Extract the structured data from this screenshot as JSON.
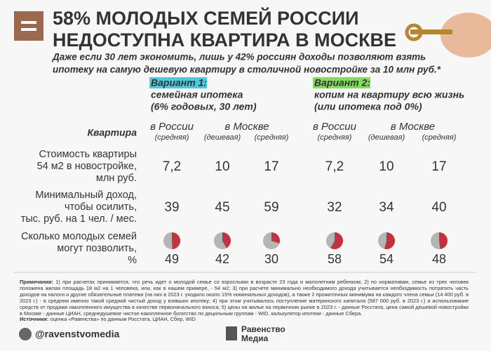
{
  "header": {
    "title_lines": [
      "58% МОЛОДЫХ СЕМЕЙ РОССИИ",
      "НЕДОСТУПНА КВАРТИРА В МОСКВЕ"
    ],
    "subtitle_lines": [
      "Даже если 30 лет экономить, лишь у 42% россиян доходы позволяют взять",
      "ипотеку на самую дешевую квартиру в столичной новостройке за 10 млн руб.*"
    ]
  },
  "variants": [
    {
      "label": "Вариант 1:",
      "lines": [
        "семейная ипотека",
        "(6% годовых, 30 лет)"
      ]
    },
    {
      "label": "Вариант 2:",
      "lines": [
        "копим на квартиру всю жизнь",
        "(или ипотека под 0%)"
      ]
    }
  ],
  "table": {
    "corner": "Квартира",
    "column_groups": [
      {
        "place": "в России",
        "kinds": [
          "(средняя)"
        ]
      },
      {
        "place": "в Москве",
        "kinds": [
          "(дешевая)",
          "(средняя)"
        ]
      },
      {
        "place": "в России",
        "kinds": [
          "(средняя)"
        ]
      },
      {
        "place": "в Москве",
        "kinds": [
          "(дешевая)",
          "(средняя)"
        ]
      }
    ],
    "rows": [
      {
        "label_lines": [
          "Стоимость квартиры",
          "54 м2 в новостройке,",
          "млн руб."
        ],
        "values": [
          "7,2",
          "10",
          "17",
          "7,2",
          "10",
          "17"
        ]
      },
      {
        "label_lines": [
          "Минимальный доход,",
          "чтобы осилить,",
          "тыс. руб. на 1 чел. / мес."
        ],
        "values": [
          39,
          45,
          59,
          32,
          34,
          40
        ]
      },
      {
        "label_lines": [
          "Сколько молодых семей",
          "могут позволить,",
          "%"
        ],
        "values": [
          49,
          42,
          30,
          58,
          54,
          48
        ]
      }
    ]
  },
  "footer": {
    "notes_label": "Примечания:",
    "notes": "1) при расчетах принимается, что речь идет о молодой семье со взрослыми в возрасте 23 года и малолетним ребенком; 2) по нормативам, семье из трех человек положена жилая площадь 18 м2 на 1 человека, или, как в нашем примере, - 54 м2; 3) при расчете минимально необходимого дохода учитывается необходимость потратить часть доходов на налоги и другие обязательные платежи (на них в 2023 г. уходило около 15% номинальных доходов), а также 2 прожиточных минимума на каждого члена семьи (14 400 руб. в 2023 г.) - в среднем именно такой средний чистый доход у взявших ипотеку; 4) при этом учитывалось поступление материнского капитала (587 000 руб. в 2023 г.) и использование средств от продажи накопленного имущества в качестве первоначального взноса; 5) цены на жилье на первичном рынке в 2023 г. - данные Росстата, цена самой дешевой новостройки в Москве - данные ЦИАН, среднедушевое чистое накопленное богатство по децильным группам - WID, калькулятор ипотеки - данные Сбера.",
    "sources_label": "Источники:",
    "sources": "оценка «Равенства» по данным Росстата, ЦИАН, Сбер, WID",
    "handle": "@ravenstvomedia",
    "logo_lines": [
      "Равенство",
      "Медиа"
    ]
  }
}
